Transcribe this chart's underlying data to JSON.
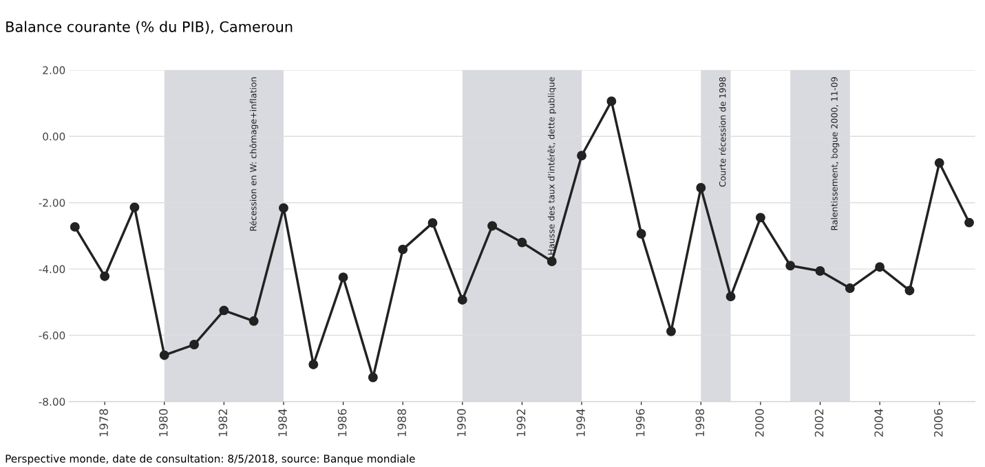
{
  "chart_data": {
    "type": "line",
    "title": "Balance courante (% du PIB), Cameroun",
    "x": [
      1977,
      1978,
      1979,
      1980,
      1981,
      1982,
      1983,
      1984,
      1985,
      1986,
      1987,
      1988,
      1989,
      1990,
      1991,
      1992,
      1993,
      1994,
      1995,
      1996,
      1997,
      1998,
      1999,
      2000,
      2001,
      2002,
      2003,
      2004,
      2005,
      2006,
      2007
    ],
    "series": [
      {
        "color": "#222222",
        "values": [
          -2.73,
          -4.22,
          -2.14,
          -6.6,
          -6.28,
          -5.25,
          -5.57,
          -2.16,
          -6.88,
          -4.25,
          -7.27,
          -3.41,
          -2.61,
          -4.93,
          -2.7,
          -3.2,
          -3.77,
          -0.58,
          1.06,
          -2.94,
          -5.88,
          -1.55,
          -4.83,
          -2.45,
          -3.9,
          -4.06,
          -4.58,
          -3.94,
          -4.65,
          -0.8,
          -2.6
        ]
      }
    ],
    "xlim": [
      1976.8,
      2007.2
    ],
    "xticks": [
      1978,
      1980,
      1982,
      1984,
      1986,
      1988,
      1990,
      1992,
      1994,
      1996,
      1998,
      2000,
      2002,
      2004,
      2006
    ],
    "ylim": [
      -8,
      2
    ],
    "yticks": [
      {
        "value": 2,
        "label": "2.00"
      },
      {
        "value": 0,
        "label": "0.00"
      },
      {
        "value": -2,
        "label": "-2.00"
      },
      {
        "value": -4,
        "label": "-4.00"
      },
      {
        "value": -6,
        "label": "-6.00"
      },
      {
        "value": -8,
        "label": "-8.00"
      }
    ],
    "bands": [
      {
        "axis": "x",
        "from": 1980,
        "to": 1984,
        "label": "Récession en W: chômage+inflation",
        "color": "#d9dae0"
      },
      {
        "axis": "x",
        "from": 1990,
        "to": 1994,
        "label": "Hausse des taux d'intérêt, dette publique",
        "color": "#d9dae0"
      },
      {
        "axis": "x",
        "from": 1998,
        "to": 1999,
        "label": "Courte récession de 1998",
        "color": "#d9dae0"
      },
      {
        "axis": "x",
        "from": 2001,
        "to": 2003,
        "label": "Ralentissement, bogue 2000, 11-09",
        "color": "#d9dae0"
      }
    ],
    "grid": "y",
    "marker": "circle",
    "line_style": "solid",
    "annotations": [
      "Perspective monde, date de consultation: 8/5/2018, source: Banque mondiale"
    ]
  }
}
